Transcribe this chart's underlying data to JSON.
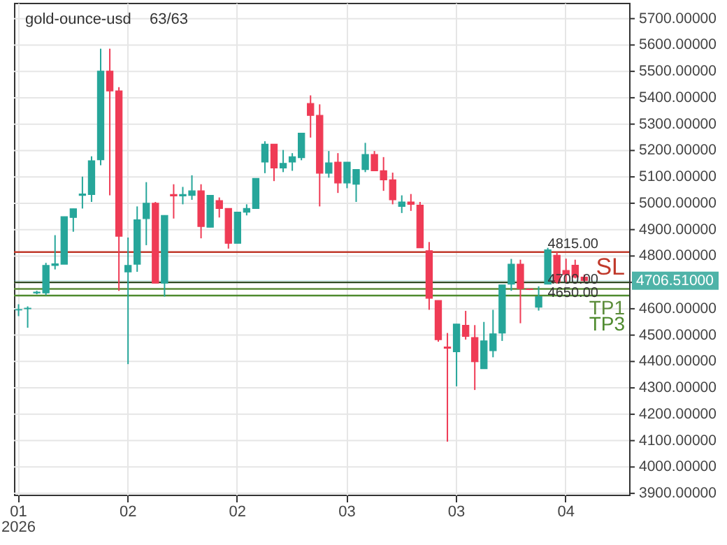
{
  "chart_data": {
    "type": "candlestick",
    "title": "gold-ounce-usd",
    "subtitle": "63/63",
    "categories": [
      "01\n2026",
      null,
      null,
      null,
      null,
      null,
      null,
      null,
      null,
      null,
      null,
      null,
      "02",
      null,
      null,
      null,
      null,
      null,
      null,
      null,
      null,
      null,
      null,
      null,
      "02",
      null,
      null,
      null,
      null,
      null,
      null,
      null,
      null,
      null,
      null,
      null,
      "03",
      null,
      null,
      null,
      null,
      null,
      null,
      null,
      null,
      null,
      null,
      null,
      "03",
      null,
      null,
      null,
      null,
      null,
      null,
      null,
      null,
      null,
      null,
      null,
      "04",
      null,
      null
    ],
    "ohlc": [
      [
        4595,
        4617,
        4572,
        4597
      ],
      [
        4600,
        4609,
        4528,
        4602
      ],
      [
        4660,
        4668,
        4655,
        4663
      ],
      [
        4660,
        4774,
        4651,
        4764
      ],
      [
        4764,
        4879,
        4749,
        4770
      ],
      [
        4769,
        4949,
        4769,
        4949
      ],
      [
        4946,
        4979,
        4892,
        4979
      ],
      [
        5030,
        5101,
        4980,
        5035
      ],
      [
        5033,
        5178,
        5005,
        5161
      ],
      [
        5165,
        5586,
        5144,
        5501
      ],
      [
        5501,
        5586,
        5030,
        5426
      ],
      [
        5426,
        5440,
        4668,
        4875
      ],
      [
        4740,
        4870,
        4390,
        4764
      ],
      [
        4769,
        4988,
        4740,
        4937
      ],
      [
        4942,
        5080,
        4841,
        5000
      ],
      [
        5000,
        5005,
        4697,
        4697
      ],
      [
        4697,
        4954,
        4646,
        4954
      ],
      [
        5033,
        5072,
        4942,
        5028
      ],
      [
        5028,
        5062,
        4996,
        5033
      ],
      [
        5030,
        5106,
        5013,
        5047
      ],
      [
        5047,
        5072,
        4867,
        4912
      ],
      [
        4909,
        5030,
        4909,
        5030
      ],
      [
        5010,
        5022,
        4946,
        4980
      ],
      [
        4980,
        4980,
        4828,
        4848
      ],
      [
        4848,
        4966,
        4848,
        4966
      ],
      [
        4966,
        4996,
        4954,
        4980
      ],
      [
        4980,
        5094,
        4980,
        5094
      ],
      [
        5156,
        5235,
        5114,
        5224
      ],
      [
        5224,
        5224,
        5084,
        5134
      ],
      [
        5134,
        5202,
        5118,
        5151
      ],
      [
        5156,
        5190,
        5123,
        5176
      ],
      [
        5173,
        5266,
        5163,
        5266
      ],
      [
        5378,
        5409,
        5249,
        5333
      ],
      [
        5333,
        5375,
        4988,
        5114
      ],
      [
        5114,
        5198,
        5097,
        5153
      ],
      [
        5156,
        5190,
        5039,
        5077
      ],
      [
        5077,
        5156,
        5057,
        5156
      ],
      [
        5072,
        5128,
        5005,
        5128
      ],
      [
        5128,
        5229,
        5118,
        5185
      ],
      [
        5185,
        5198,
        5123,
        5123
      ],
      [
        5123,
        5175,
        5047,
        5089
      ],
      [
        5089,
        5116,
        4996,
        5013
      ],
      [
        4988,
        5030,
        4963,
        5005
      ],
      [
        5005,
        5035,
        4971,
        4996
      ],
      [
        4993,
        5005,
        4831,
        4831
      ],
      [
        4820,
        4853,
        4596,
        4640
      ],
      [
        4631,
        4631,
        4475,
        4483
      ],
      [
        4455,
        4508,
        4096,
        4450
      ],
      [
        4437,
        4542,
        4306,
        4542
      ],
      [
        4537,
        4592,
        4483,
        4495
      ],
      [
        4491,
        4538,
        4292,
        4399
      ],
      [
        4373,
        4550,
        4373,
        4478
      ],
      [
        4441,
        4596,
        4416,
        4505
      ],
      [
        4508,
        4690,
        4478,
        4690
      ],
      [
        4693,
        4789,
        4668,
        4769
      ],
      [
        4769,
        4786,
        4545,
        4676
      ],
      [
        4675,
        4676,
        4671,
        4673
      ],
      [
        4606,
        4685,
        4593,
        4646
      ],
      [
        4693,
        4831,
        4693,
        4823
      ],
      [
        4803,
        4815,
        4695,
        4702
      ],
      [
        4745,
        4790,
        4700,
        4730
      ],
      [
        4765,
        4786,
        4715,
        4720
      ],
      [
        4720,
        4730,
        4700,
        4706.51
      ]
    ],
    "colors": [
      "#26a69a",
      "#26a69a",
      "#26a69a",
      "#26a69a",
      "#26a69a",
      "#26a69a",
      "#26a69a",
      "#26a69a",
      "#26a69a",
      "#26a69a",
      "#ef3b55",
      "#ef3b55",
      "#26a69a",
      "#26a69a",
      "#26a69a",
      "#ef3b55",
      "#26a69a",
      "#ef3b55",
      "#26a69a",
      "#26a69a",
      "#ef3b55",
      "#26a69a",
      "#ef3b55",
      "#ef3b55",
      "#26a69a",
      "#26a69a",
      "#26a69a",
      "#26a69a",
      "#ef3b55",
      "#26a69a",
      "#26a69a",
      "#26a69a",
      "#ef3b55",
      "#ef3b55",
      "#26a69a",
      "#ef3b55",
      "#26a69a",
      "#26a69a",
      "#26a69a",
      "#ef3b55",
      "#ef3b55",
      "#ef3b55",
      "#26a69a",
      "#ef3b55",
      "#ef3b55",
      "#ef3b55",
      "#ef3b55",
      "#ef3b55",
      "#26a69a",
      "#ef3b55",
      "#ef3b55",
      "#26a69a",
      "#26a69a",
      "#26a69a",
      "#26a69a",
      "#ef3b55",
      "#ef3b55",
      "#26a69a",
      "#26a69a",
      "#ef3b55",
      "#ef3b55",
      "#ef3b55",
      "#ef3b55"
    ],
    "ylim": [
      3895,
      5760
    ],
    "yticks": [
      {
        "value": 3900,
        "label": "3900.00000"
      },
      {
        "value": 4000,
        "label": "4000.00000"
      },
      {
        "value": 4100,
        "label": "4100.00000"
      },
      {
        "value": 4200,
        "label": "4200.00000"
      },
      {
        "value": 4300,
        "label": "4300.00000"
      },
      {
        "value": 4400,
        "label": "4400.00000"
      },
      {
        "value": 4500,
        "label": "4500.00000"
      },
      {
        "value": 4600,
        "label": "4600.00000"
      },
      {
        "value": 4700,
        "label": null
      },
      {
        "value": 4800,
        "label": "4800.00000"
      },
      {
        "value": 4900,
        "label": "4900.00000"
      },
      {
        "value": 5000,
        "label": "5000.00000"
      },
      {
        "value": 5100,
        "label": "5100.00000"
      },
      {
        "value": 5200,
        "label": "5200.00000"
      },
      {
        "value": 5300,
        "label": "5300.00000"
      },
      {
        "value": 5400,
        "label": "5400.00000"
      },
      {
        "value": 5500,
        "label": "5500.00000"
      },
      {
        "value": 5600,
        "label": "5600.00000"
      },
      {
        "value": 5700,
        "label": "5700.00000"
      }
    ],
    "ref_lines": [
      {
        "axis": "y",
        "value": 4815,
        "label": "SL",
        "color": "#c0392b"
      },
      {
        "axis": "y",
        "value": 4700,
        "label": null,
        "color": "#2d4a22"
      },
      {
        "axis": "y",
        "value": 4675,
        "label": "TP1",
        "color": "#5b8c3a"
      },
      {
        "axis": "y",
        "value": 4650,
        "label": "TP3",
        "color": "#4e8a2e"
      },
      {
        "axis": "y",
        "value": 4706.51,
        "label": "4706.51000",
        "color": "#4fb3a8"
      }
    ],
    "annotations": [
      {
        "text": "4815.00",
        "y": 4815
      },
      {
        "text": "4700.00",
        "y": 4700
      },
      {
        "text": "4650.00",
        "y": 4650
      }
    ],
    "grid": true
  }
}
